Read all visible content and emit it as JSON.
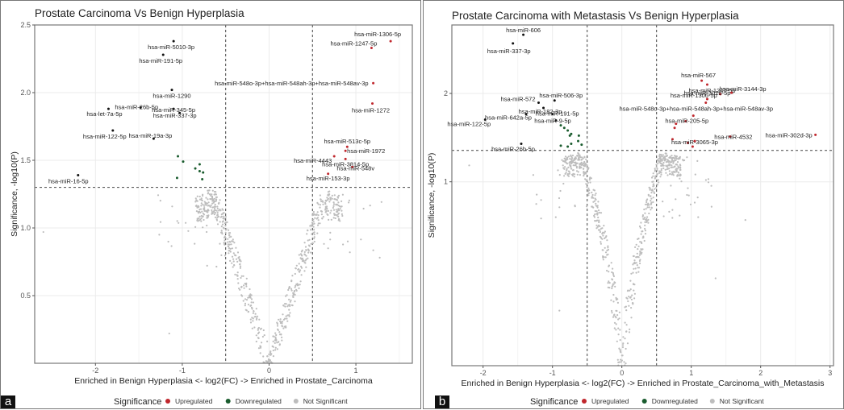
{
  "legend": {
    "title": "Significance",
    "items": [
      {
        "label": "Upregulated",
        "color": "#c0272d"
      },
      {
        "label": "Downregulated",
        "color": "#1a5c2e"
      },
      {
        "label": "Not Significant",
        "color": "#bdbdbd"
      }
    ]
  },
  "chart_data": [
    {
      "panel_tag": "a",
      "type": "scatter",
      "title": "Prostate Carcinoma Vs Benign Hyperplasia",
      "xlabel": "Enriched in Benign Hyperplasia <- log2(FC) -> Enriched in Prostate_Carcinoma",
      "ylabel": "Significance, -log10(P)",
      "xlim": [
        -2.7,
        1.65
      ],
      "ylim": [
        0.0,
        2.5
      ],
      "y_scale": "linear",
      "x_ticks": [
        {
          "v": -2,
          "label": "-2"
        },
        {
          "v": -1,
          "label": "-1"
        },
        {
          "v": 0,
          "label": "0"
        },
        {
          "v": 1,
          "label": "1"
        }
      ],
      "y_ticks": [
        {
          "v": 0.5,
          "label": "0.5"
        },
        {
          "v": 1.0,
          "label": "1.0"
        },
        {
          "v": 1.5,
          "label": "1.5"
        },
        {
          "v": 2.0,
          "label": "2.0"
        },
        {
          "v": 2.5,
          "label": "2.5"
        }
      ],
      "thresholds": {
        "log2fc": [
          -0.5,
          0.5
        ],
        "neglog10p": 1.3
      },
      "grid": true,
      "legend_position": "bottom",
      "labeled_points": [
        {
          "label": "hsa-miR-1306-5p",
          "x": 1.4,
          "y": 2.38,
          "sig": "Upregulated"
        },
        {
          "label": "hsa-miR-1247-5p",
          "x": 1.18,
          "y": 2.33,
          "sig": "Upregulated"
        },
        {
          "label": "hsa-miR-548o-3p+hsa-miR-548ah-3p+hsa-miR-548av-3p",
          "x": 1.2,
          "y": 2.07,
          "sig": "Upregulated"
        },
        {
          "label": "hsa-miR-1272",
          "x": 1.19,
          "y": 1.92,
          "sig": "Upregulated"
        },
        {
          "label": "hsa-miR-513c-5p",
          "x": 0.9,
          "y": 1.6,
          "sig": "Upregulated"
        },
        {
          "label": "hsa-miR-1972",
          "x": 0.88,
          "y": 1.57,
          "sig": "Upregulated"
        },
        {
          "label": "hsa-miR-4443",
          "x": 0.75,
          "y": 1.53,
          "sig": "Upregulated"
        },
        {
          "label": "hsa-miR-3814-5p",
          "x": 0.88,
          "y": 1.51,
          "sig": "Upregulated"
        },
        {
          "label": "hsa-miR-548v",
          "x": 0.96,
          "y": 1.45,
          "sig": "Upregulated"
        },
        {
          "label": "hsa-miR-153-3p",
          "x": 0.68,
          "y": 1.4,
          "sig": "Upregulated"
        },
        {
          "label": "hsa-miR-5010-3p",
          "x": -1.1,
          "y": 2.38,
          "sig": "Downregulated"
        },
        {
          "label": "hsa-miR-191-5p",
          "x": -1.22,
          "y": 2.28,
          "sig": "Downregulated"
        },
        {
          "label": "hsa-miR-1290",
          "x": -1.12,
          "y": 2.02,
          "sig": "Downregulated"
        },
        {
          "label": "hsa-miR-26b-5p",
          "x": -1.48,
          "y": 1.89,
          "sig": "Downregulated"
        },
        {
          "label": "hsa-miR-345-5p",
          "x": -1.1,
          "y": 1.88,
          "sig": "Downregulated"
        },
        {
          "label": "hsa-let-7a-5p",
          "x": -1.85,
          "y": 1.88,
          "sig": "Downregulated"
        },
        {
          "label": "hsa-miR-337-3p",
          "x": -1.03,
          "y": 1.85,
          "sig": "Downregulated"
        },
        {
          "label": "hsa-miR-122-5p",
          "x": -1.8,
          "y": 1.72,
          "sig": "Downregulated"
        },
        {
          "label": "hsa-miR-19a-3p",
          "x": -1.33,
          "y": 1.66,
          "sig": "Downregulated"
        },
        {
          "label": "hsa-miR-16-5p",
          "x": -2.2,
          "y": 1.39,
          "sig": "Downregulated"
        }
      ],
      "unlabeled_significant": [
        {
          "x": -1.05,
          "y": 1.53,
          "sig": "Downregulated"
        },
        {
          "x": -0.99,
          "y": 1.49,
          "sig": "Downregulated"
        },
        {
          "x": -0.8,
          "y": 1.47,
          "sig": "Downregulated"
        },
        {
          "x": -0.85,
          "y": 1.44,
          "sig": "Downregulated"
        },
        {
          "x": -0.8,
          "y": 1.42,
          "sig": "Downregulated"
        },
        {
          "x": -0.76,
          "y": 1.41,
          "sig": "Downregulated"
        },
        {
          "x": -1.06,
          "y": 1.37,
          "sig": "Downregulated"
        },
        {
          "x": -0.77,
          "y": 1.36,
          "sig": "Downregulated"
        }
      ],
      "not_significant_count_approx": 700
    },
    {
      "panel_tag": "b",
      "type": "scatter",
      "title": "Prostate Carcinoma with Metastasis Vs Benign Hyperplasia",
      "xlabel": "Enriched in Benign Hyperplasia <- log2(FC) -> Enriched in Prostate_Carcinoma_with_Metastasis",
      "ylabel": "Significance, -log10(P)",
      "xlim": [
        -2.45,
        3.05
      ],
      "ylim": [
        0.0,
        3.2
      ],
      "y_scale": "log",
      "x_ticks": [
        {
          "v": -2,
          "label": "-2"
        },
        {
          "v": -1,
          "label": "-1"
        },
        {
          "v": 0,
          "label": "0"
        },
        {
          "v": 1,
          "label": "1"
        },
        {
          "v": 2,
          "label": "2"
        },
        {
          "v": 3,
          "label": "3"
        }
      ],
      "y_ticks": [
        {
          "v": 1,
          "label": "1"
        },
        {
          "v": 2,
          "label": "2"
        }
      ],
      "thresholds": {
        "log2fc": [
          -0.5,
          0.5
        ],
        "neglog10p": 1.3
      },
      "grid": true,
      "legend_position": "bottom",
      "labeled_points": [
        {
          "label": "hsa-miR-606",
          "x": -1.42,
          "y": 3.0,
          "sig": "Downregulated"
        },
        {
          "label": "hsa-miR-337-3p",
          "x": -1.57,
          "y": 2.83,
          "sig": "Downregulated"
        },
        {
          "label": "hsa-miR-567",
          "x": 1.15,
          "y": 2.19,
          "sig": "Upregulated"
        },
        {
          "label": "hsa-miR-1247-5p",
          "x": 1.23,
          "y": 2.13,
          "sig": "Upregulated"
        },
        {
          "label": "hsa-miR-3144-3p",
          "x": 1.58,
          "y": 2.01,
          "sig": "Upregulated"
        },
        {
          "label": "hsa-miR-1306-5p",
          "x": 1.42,
          "y": 1.99,
          "sig": "Upregulated"
        },
        {
          "label": "hsa-miR-301b-5p",
          "x": 1.23,
          "y": 1.92,
          "sig": "Upregulated"
        },
        {
          "label": "hsa-miR-548o-3p+hsa-miR-548ah-3p+hsa-miR-548av-3p",
          "x": 1.21,
          "y": 1.87,
          "sig": "Upregulated"
        },
        {
          "label": "hsa-miR-205-5p",
          "x": 1.03,
          "y": 1.7,
          "sig": "Upregulated"
        },
        {
          "label": "hsa-miR-4532",
          "x": 1.56,
          "y": 1.45,
          "sig": "Upregulated"
        },
        {
          "label": "hsa-miR-302d-3p",
          "x": 2.79,
          "y": 1.47,
          "sig": "Upregulated"
        },
        {
          "label": "hsa-miR-3065-3p",
          "x": 1.05,
          "y": 1.4,
          "sig": "Upregulated"
        },
        {
          "label": "hsa-miR-506-3p",
          "x": -0.97,
          "y": 1.9,
          "sig": "Downregulated"
        },
        {
          "label": "hsa-miR-572",
          "x": -1.2,
          "y": 1.87,
          "sig": "Downregulated"
        },
        {
          "label": "hsa-miR-182-3p",
          "x": -1.13,
          "y": 1.8,
          "sig": "Downregulated"
        },
        {
          "label": "hsa-miR-191-5p",
          "x": -1.0,
          "y": 1.72,
          "sig": "Downregulated"
        },
        {
          "label": "hsa-miR-9-5p",
          "x": -0.95,
          "y": 1.64,
          "sig": "Downregulated"
        },
        {
          "label": "hsa-miR-642a-5p",
          "x": -1.38,
          "y": 1.72,
          "sig": "Downregulated"
        },
        {
          "label": "hsa-miR-122-5p",
          "x": -1.97,
          "y": 1.65,
          "sig": "Downregulated"
        },
        {
          "label": "hsa-miR-26b-5p",
          "x": -1.45,
          "y": 1.37,
          "sig": "Downregulated"
        }
      ],
      "unlabeled_significant": [
        {
          "x": -0.88,
          "y": 1.58,
          "sig": "Downregulated"
        },
        {
          "x": -0.83,
          "y": 1.55,
          "sig": "Downregulated"
        },
        {
          "x": -0.78,
          "y": 1.52,
          "sig": "Downregulated"
        },
        {
          "x": -0.73,
          "y": 1.48,
          "sig": "Downregulated"
        },
        {
          "x": -0.75,
          "y": 1.46,
          "sig": "Downregulated"
        },
        {
          "x": -0.62,
          "y": 1.46,
          "sig": "Downregulated"
        },
        {
          "x": -0.63,
          "y": 1.4,
          "sig": "Downregulated"
        },
        {
          "x": -0.73,
          "y": 1.37,
          "sig": "Downregulated"
        },
        {
          "x": -0.78,
          "y": 1.34,
          "sig": "Downregulated"
        },
        {
          "x": -0.58,
          "y": 1.36,
          "sig": "Downregulated"
        },
        {
          "x": -0.88,
          "y": 1.35,
          "sig": "Downregulated"
        },
        {
          "x": 0.78,
          "y": 1.6,
          "sig": "Upregulated"
        },
        {
          "x": 0.76,
          "y": 1.55,
          "sig": "Upregulated"
        },
        {
          "x": 0.73,
          "y": 1.42,
          "sig": "Upregulated"
        },
        {
          "x": 0.92,
          "y": 1.63,
          "sig": "Upregulated"
        },
        {
          "x": 0.95,
          "y": 1.38,
          "sig": "Upregulated"
        },
        {
          "x": 1.02,
          "y": 1.34,
          "sig": "Upregulated"
        }
      ],
      "not_significant_count_approx": 700
    }
  ]
}
